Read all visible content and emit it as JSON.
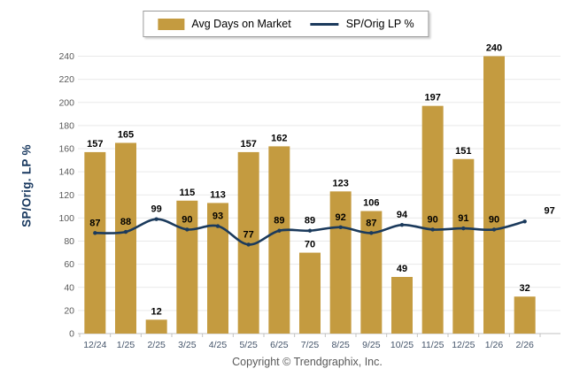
{
  "legend": {
    "items": [
      {
        "label": "Avg Days on Market",
        "swatch": "bar",
        "color": "#C49B40"
      },
      {
        "label": "SP/Orig LP %",
        "swatch": "line",
        "color": "#1B3A5C"
      }
    ]
  },
  "chart_data": {
    "type": "bar",
    "categories": [
      "12/24",
      "1/25",
      "2/25",
      "3/25",
      "4/25",
      "5/25",
      "6/25",
      "7/25",
      "8/25",
      "9/25",
      "10/25",
      "11/25",
      "12/25",
      "1/26",
      "2/26"
    ],
    "series": [
      {
        "name": "Avg Days on Market",
        "type": "bar",
        "color": "#C49B40",
        "values": [
          157,
          165,
          12,
          115,
          113,
          157,
          162,
          70,
          123,
          106,
          49,
          197,
          151,
          240,
          32
        ]
      },
      {
        "name": "SP/Orig LP %",
        "type": "line",
        "color": "#1B3A5C",
        "values": [
          87,
          88,
          99,
          90,
          93,
          77,
          89,
          89,
          92,
          87,
          94,
          90,
          91,
          90,
          97
        ]
      }
    ],
    "title": "",
    "xlabel": "",
    "ylabel": "SP/Orig. LP %",
    "ylim": [
      0,
      240
    ],
    "ytick_step": 20,
    "grid": "horizontal",
    "legend_position": "top"
  },
  "footer": {
    "copyright": "Copyright © Trendgraphix, Inc."
  },
  "colors": {
    "bar": "#C49B40",
    "line": "#1B3A5C",
    "axis_title": "#17375E",
    "y_tick_label": "#595959",
    "x_tick_label": "#44546A",
    "gridline": "#E9E9E9",
    "axis_line": "#C2C2C2",
    "value_label": "#000000",
    "copyright": "#595959",
    "background": "#FFFFFF"
  }
}
